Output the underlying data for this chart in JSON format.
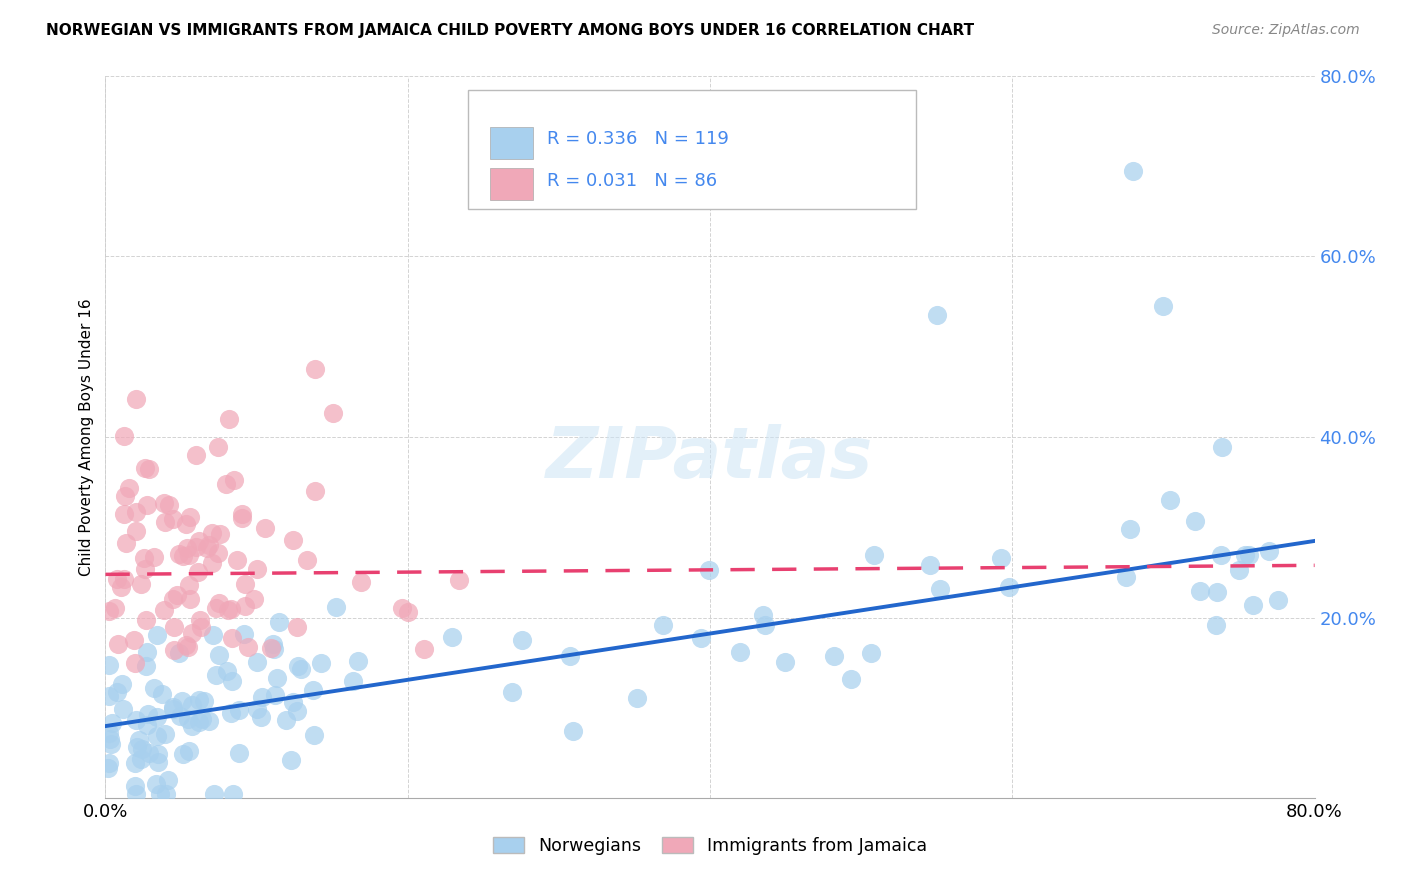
{
  "title": "NORWEGIAN VS IMMIGRANTS FROM JAMAICA CHILD POVERTY AMONG BOYS UNDER 16 CORRELATION CHART",
  "source": "Source: ZipAtlas.com",
  "ylabel": "Child Poverty Among Boys Under 16",
  "xlim": [
    0.0,
    0.8
  ],
  "ylim": [
    0.0,
    0.8
  ],
  "norwegian_R": 0.336,
  "norwegian_N": 119,
  "jamaica_R": 0.031,
  "jamaica_N": 86,
  "norwegian_color": "#a8d0ee",
  "jamaica_color": "#f0a8b8",
  "norwegian_line_color": "#2266cc",
  "jamaica_line_color": "#e84070",
  "right_tick_color": "#4488ee",
  "watermark_color": "#cce4f5",
  "legend_label_norwegian": "Norwegians",
  "legend_label_jamaica": "Immigrants from Jamaica",
  "nor_line_start_y": 0.08,
  "nor_line_end_y": 0.285,
  "jam_line_start_y": 0.248,
  "jam_line_end_y": 0.258
}
